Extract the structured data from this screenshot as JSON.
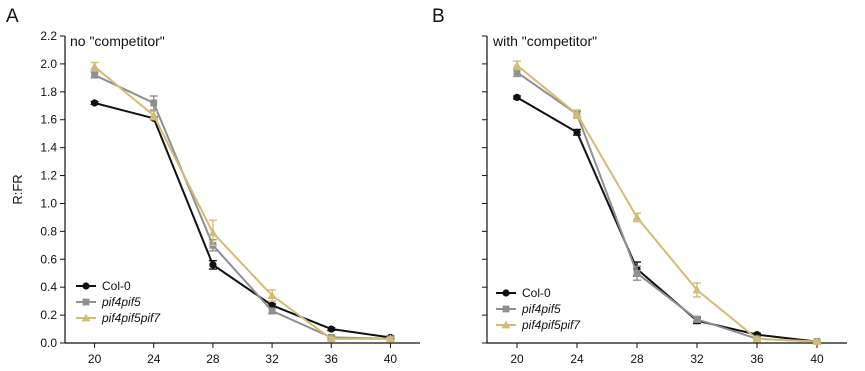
{
  "chart_data": [
    {
      "type": "line",
      "panel_label": "A",
      "title": "no \"competitor\"",
      "xlabel": "",
      "ylabel": "R:FR",
      "x": [
        20,
        24,
        28,
        32,
        36,
        40
      ],
      "x_ticks": [
        "20",
        "24",
        "28",
        "32",
        "36",
        "40"
      ],
      "y_ticks": [
        "0.0",
        "0.2",
        "0.4",
        "0.6",
        "0.8",
        "1.0",
        "1.2",
        "1.4",
        "1.6",
        "1.8",
        "2.0",
        "2.2"
      ],
      "xlim": [
        18,
        42
      ],
      "ylim": [
        0,
        2.2
      ],
      "legend_position": "bottom-left",
      "series": [
        {
          "name": "Col-0",
          "color": "#111111",
          "marker": "circle",
          "values": [
            1.72,
            1.61,
            0.56,
            0.27,
            0.1,
            0.04
          ],
          "errors": [
            0.01,
            0.01,
            0.03,
            0.01,
            0.01,
            0.01
          ]
        },
        {
          "name": "pif4pif5",
          "color": "#8f8f8f",
          "marker": "square",
          "values": [
            1.92,
            1.72,
            0.7,
            0.23,
            0.04,
            0.03
          ],
          "errors": [
            0.02,
            0.05,
            0.04,
            0.02,
            0.01,
            0.01
          ]
        },
        {
          "name": "pif4pif5pif7",
          "color": "#d1bc75",
          "marker": "triangle",
          "values": [
            1.98,
            1.63,
            0.79,
            0.34,
            0.03,
            0.03
          ],
          "errors": [
            0.03,
            0.03,
            0.09,
            0.04,
            0.01,
            0.01
          ]
        }
      ]
    },
    {
      "type": "line",
      "panel_label": "B",
      "title": "with \"competitor\"",
      "xlabel": "",
      "ylabel": "",
      "x": [
        20,
        24,
        28,
        32,
        36,
        40
      ],
      "x_ticks": [
        "20",
        "24",
        "28",
        "32",
        "36",
        "40"
      ],
      "xlim": [
        18,
        42
      ],
      "ylim": [
        0,
        2.2
      ],
      "legend_position": "bottom-left",
      "series": [
        {
          "name": "Col-0",
          "color": "#111111",
          "marker": "circle",
          "values": [
            1.76,
            1.51,
            0.53,
            0.16,
            0.06,
            0.01
          ],
          "errors": [
            0.01,
            0.02,
            0.05,
            0.02,
            0.01,
            0.01
          ]
        },
        {
          "name": "pif4pif5",
          "color": "#8f8f8f",
          "marker": "square",
          "values": [
            1.94,
            1.64,
            0.5,
            0.17,
            0.03,
            0.01
          ],
          "errors": [
            0.03,
            0.02,
            0.05,
            0.02,
            0.01,
            0.01
          ]
        },
        {
          "name": "pif4pif5pif7",
          "color": "#d1bc75",
          "marker": "triangle",
          "values": [
            1.99,
            1.64,
            0.9,
            0.38,
            0.03,
            0.01
          ],
          "errors": [
            0.03,
            0.03,
            0.03,
            0.05,
            0.01,
            0.01
          ]
        }
      ]
    }
  ]
}
